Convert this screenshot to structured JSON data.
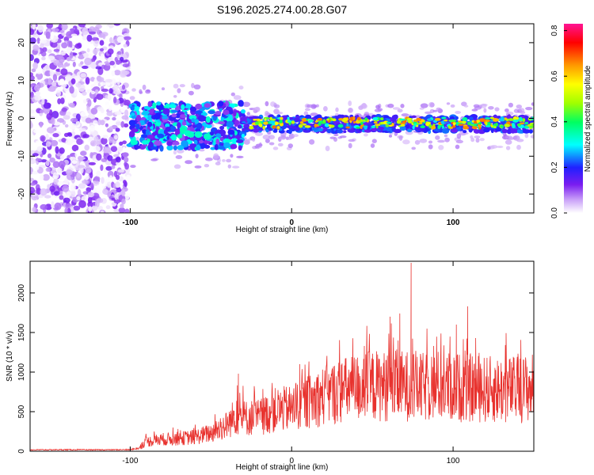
{
  "title": "S196.2025.274.00.28.G07",
  "chart_data": [
    {
      "type": "heatmap",
      "xlabel": "Height of straight line (km)",
      "ylabel": "Frequency (Hz)",
      "xlim": [
        -162,
        150
      ],
      "ylim": [
        -25,
        25
      ],
      "x_ticks": [
        -100,
        0,
        100
      ],
      "y_ticks": [
        -20,
        -10,
        0,
        10,
        20
      ],
      "colorbar": {
        "label": "Normalized spectral amplitude",
        "range": [
          0.0,
          0.83
        ],
        "ticks": [
          "0.0",
          "0.2",
          "0.4",
          "0.6",
          "0.8"
        ],
        "colors": [
          "#ffffff",
          "#c9a0f8",
          "#7a1df0",
          "#2020ff",
          "#00ffff",
          "#00ff60",
          "#a0ff00",
          "#ffff00",
          "#ff9900",
          "#ff0000",
          "#ff1493"
        ]
      },
      "regions": [
        {
          "x_from": -162,
          "x_to": -101,
          "freq_from": -25,
          "freq_to": 25,
          "amplitude": "0.0–0.1",
          "pattern": "broadband noise"
        },
        {
          "x_from": -100,
          "x_to": -30,
          "freq_from": -8,
          "freq_to": 4,
          "amplitude": "0.1–0.4",
          "pattern": "broad signal band"
        },
        {
          "x_from": -30,
          "x_to": 150,
          "center_freq": -1.5,
          "half_width_hz": 2,
          "amplitude": "0.3–0.8",
          "pattern": "narrow signal band"
        }
      ]
    },
    {
      "type": "line",
      "xlabel": "Height of straight line (km)",
      "ylabel": "SNR (10 * v/v)",
      "xlim": [
        -162,
        150
      ],
      "ylim": [
        0,
        2400
      ],
      "x_ticks": [
        -100,
        0,
        100
      ],
      "y_ticks": [
        0,
        500,
        1000,
        1500,
        2000
      ],
      "color": "#e8322e",
      "series": [
        {
          "x": [
            -160,
            -140,
            -120,
            -100,
            -95,
            -90,
            -80,
            -70,
            -60,
            -50,
            -40,
            -35,
            -30,
            -20,
            -10,
            0,
            10,
            20,
            30,
            40,
            50,
            60,
            65,
            70,
            75,
            80,
            90,
            100,
            110,
            120,
            130,
            140,
            150
          ],
          "values": [
            18,
            20,
            18,
            20,
            40,
            120,
            150,
            160,
            180,
            230,
            330,
            450,
            420,
            430,
            520,
            540,
            620,
            700,
            760,
            800,
            830,
            820,
            830,
            820,
            840,
            800,
            830,
            810,
            800,
            780,
            780,
            780,
            810
          ]
        }
      ],
      "spikes": [
        {
          "x": 74,
          "y": 2380
        },
        {
          "x": 109,
          "y": 1830
        },
        {
          "x": 67,
          "y": 1740
        },
        {
          "x": 61,
          "y": 1700
        },
        {
          "x": 102,
          "y": 1600
        },
        {
          "x": 114,
          "y": 1430
        },
        {
          "x": 45,
          "y": 1330
        },
        {
          "x": 88,
          "y": 1330
        },
        {
          "x": -33,
          "y": 980
        },
        {
          "x": 5,
          "y": 1100
        }
      ]
    }
  ]
}
